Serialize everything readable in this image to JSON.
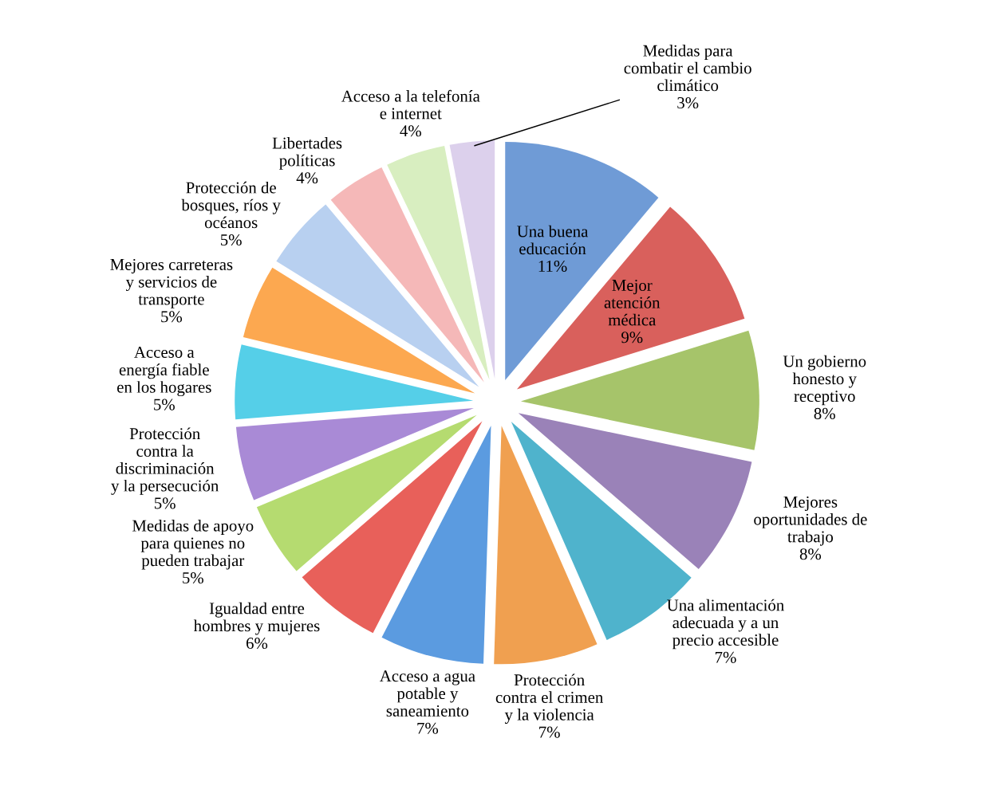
{
  "chart_data": {
    "type": "pie",
    "categories": [
      "Una buena\neducación",
      "Mejor\natención\nmédica",
      "Un gobierno\nhonesto y\nreceptivo",
      "Mejores\noportunidades de\ntrabajo",
      "Una alimentación\nadecuada y a un\nprecio accesible",
      "Protección\ncontra el crimen\ny la violencia",
      "Acceso a agua\npotable y\nsaneamiento",
      "Igualdad entre\nhombres y mujeres",
      "Medidas de apoyo\npara quienes no\npueden trabajar",
      "Protección\ncontra la\ndiscriminación\ny la persecución",
      "Acceso a\nenergía fiable\nen los hogares",
      "Mejores carreteras\ny servicios de\ntransporte",
      "Protección de\nbosques, ríos y\nocéanos",
      "Libertades\npolíticas",
      "Acceso a la telefonía\ne internet",
      "Medidas para\ncombatir el cambio\nclimático"
    ],
    "values": [
      11,
      9,
      8,
      8,
      7,
      7,
      7,
      6,
      5,
      5,
      5,
      5,
      5,
      4,
      4,
      3
    ],
    "value_labels": [
      "11%",
      "9%",
      "8%",
      "8%",
      "7%",
      "7%",
      "7%",
      "6%",
      "5%",
      "5%",
      "5%",
      "5%",
      "5%",
      "4%",
      "4%",
      "3%"
    ],
    "colors": [
      "#6f9bd6",
      "#d9605c",
      "#a6c46a",
      "#9a82b8",
      "#4fb3cc",
      "#f0a050",
      "#5b9be0",
      "#e8605a",
      "#b5db70",
      "#a98ad6",
      "#55cfe8",
      "#fca850",
      "#b8d0f0",
      "#f5b8b8",
      "#d8eec0",
      "#dcd0ec"
    ]
  }
}
